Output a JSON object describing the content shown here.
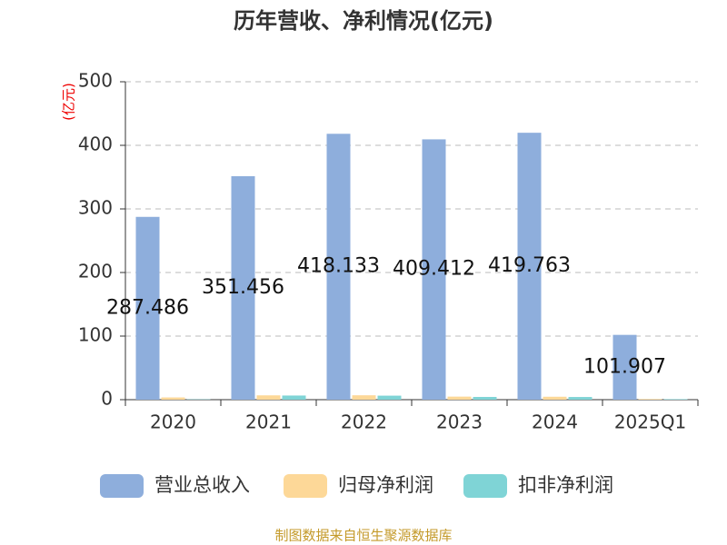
{
  "chart_data": {
    "type": "bar",
    "title": "历年营收、净利情况(亿元)",
    "y_label": "(亿元)",
    "categories": [
      "2020",
      "2021",
      "2022",
      "2023",
      "2024",
      "2025Q1"
    ],
    "series": [
      {
        "name": "营业总收入",
        "color": "#8eaedc",
        "values": [
          287.486,
          351.456,
          418.133,
          409.412,
          419.763,
          101.907
        ],
        "show_labels": true
      },
      {
        "name": "归母净利润",
        "color": "#fdd898",
        "values": [
          3.5,
          6.8,
          6.9,
          4.8,
          4.6,
          1.0
        ]
      },
      {
        "name": "扣非净利润",
        "color": "#7fd4d6",
        "values": [
          0.5,
          6.5,
          6.3,
          4.3,
          4.2,
          0.8
        ]
      }
    ],
    "ylim": [
      0,
      500
    ],
    "yticks": [
      0,
      100,
      200,
      300,
      400,
      500
    ],
    "grid": true,
    "source": "制图数据来自恒生聚源数据库"
  }
}
